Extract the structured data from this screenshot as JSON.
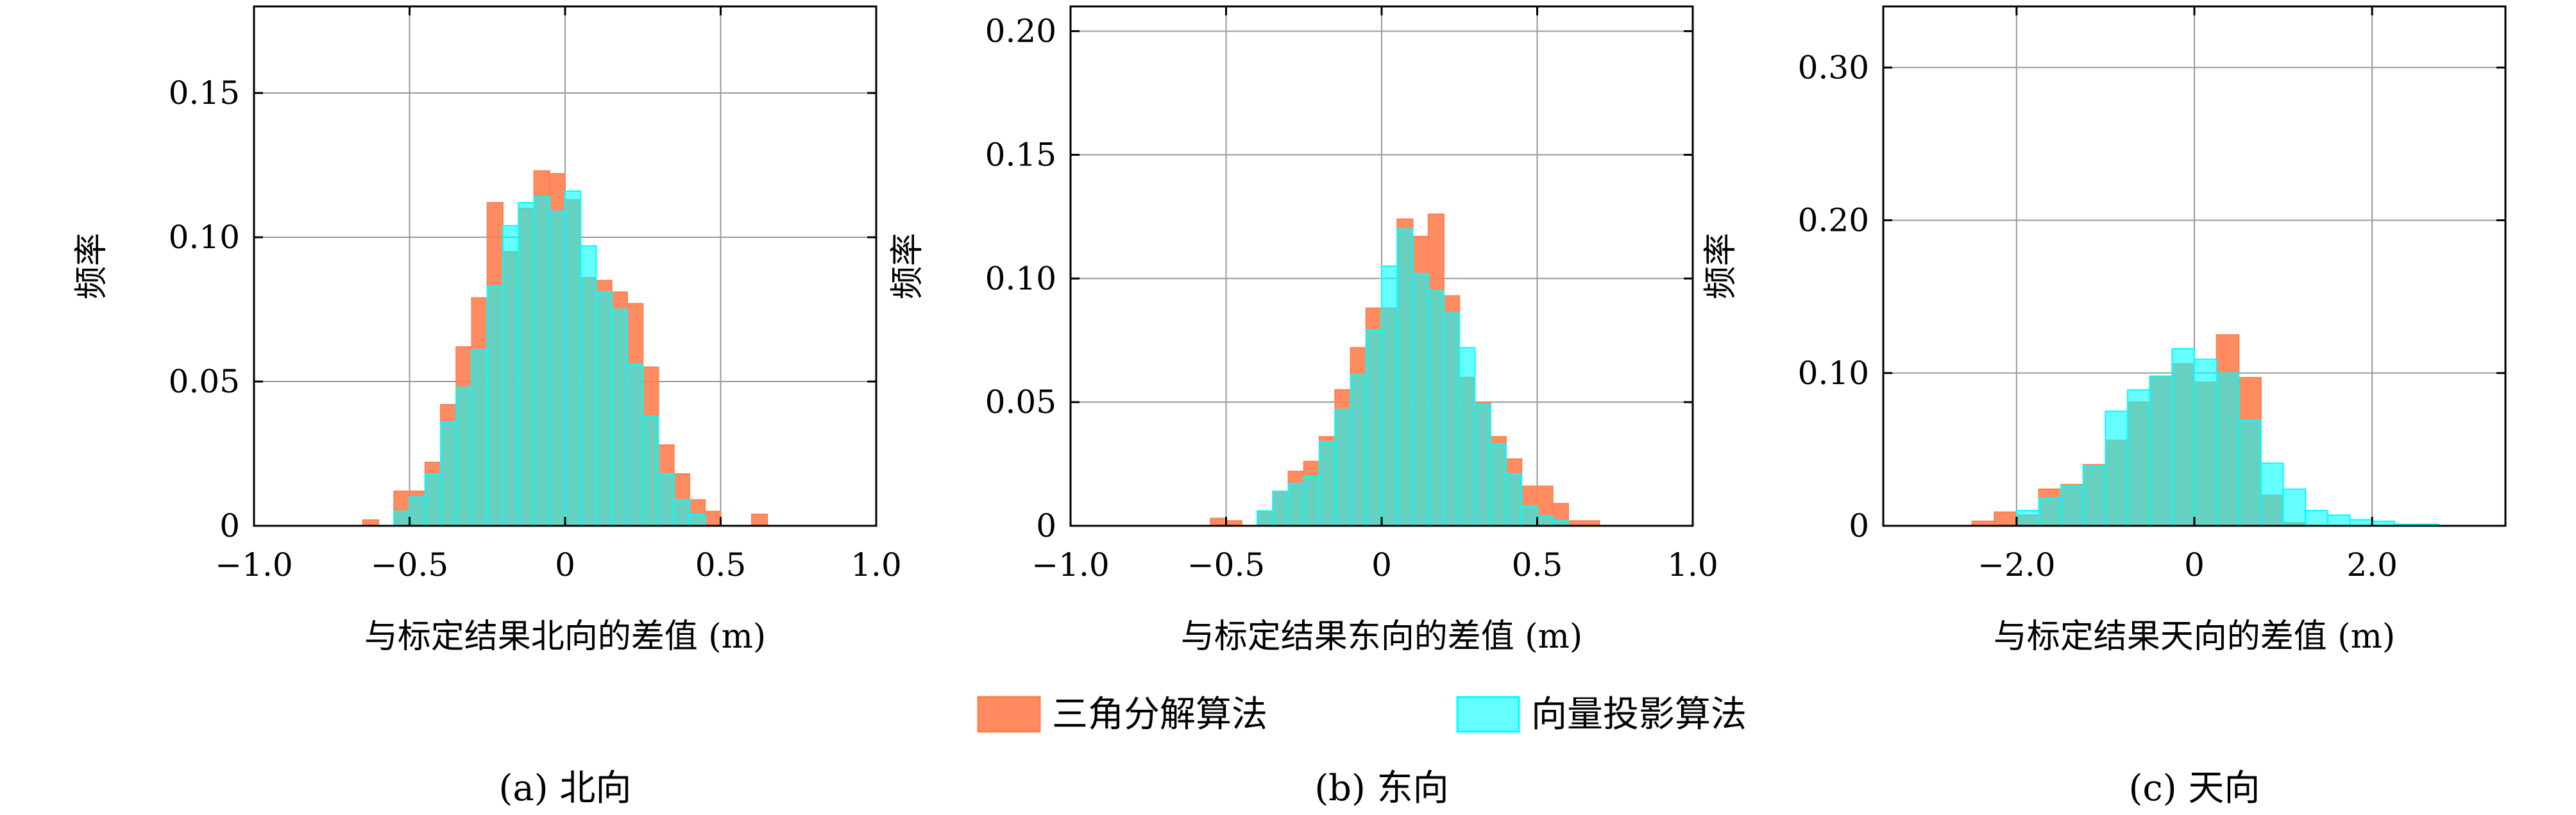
{
  "legend": {
    "items": [
      {
        "label": "三角分解算法",
        "color": "#ff7f50",
        "fill_opacity": 0.9,
        "icon": "orange-swatch"
      },
      {
        "label": "向量投影算法",
        "color": "#00ffff",
        "fill_opacity": 0.6,
        "icon": "cyan-swatch"
      }
    ]
  },
  "chart_data": [
    {
      "type": "bar",
      "subtype": "histogram-overlay",
      "caption": "(a) 北向",
      "xlabel": "与标定结果北向的差值 (m)",
      "ylabel": "频率",
      "xlim": [
        -1.0,
        1.0
      ],
      "ylim": [
        0,
        0.18
      ],
      "xticks": [
        -1.0,
        -0.5,
        0,
        0.5,
        1.0
      ],
      "xtick_labels": [
        "−1.0",
        "−0.5",
        "0",
        "0.5",
        "1.0"
      ],
      "yticks": [
        0,
        0.05,
        0.1,
        0.15
      ],
      "ytick_labels": [
        "0",
        "0.05",
        "0.10",
        "0.15"
      ],
      "grid": true,
      "bin_width": 0.05,
      "series": [
        {
          "name": "三角分解算法",
          "bin_starts": [
            -0.65,
            -0.55,
            -0.5,
            -0.45,
            -0.4,
            -0.35,
            -0.3,
            -0.25,
            -0.2,
            -0.15,
            -0.1,
            -0.05,
            0.0,
            0.05,
            0.1,
            0.15,
            0.2,
            0.25,
            0.3,
            0.35,
            0.4,
            0.45,
            0.6
          ],
          "values": [
            0.002,
            0.012,
            0.012,
            0.022,
            0.042,
            0.062,
            0.079,
            0.112,
            0.095,
            0.11,
            0.123,
            0.122,
            0.113,
            0.086,
            0.085,
            0.081,
            0.077,
            0.055,
            0.028,
            0.018,
            0.009,
            0.005,
            0.004
          ]
        },
        {
          "name": "向量投影算法",
          "bin_starts": [
            -0.55,
            -0.5,
            -0.45,
            -0.4,
            -0.35,
            -0.3,
            -0.25,
            -0.2,
            -0.15,
            -0.1,
            -0.05,
            0.0,
            0.05,
            0.1,
            0.15,
            0.2,
            0.25,
            0.3,
            0.35,
            0.4
          ],
          "values": [
            0.005,
            0.01,
            0.018,
            0.036,
            0.048,
            0.061,
            0.083,
            0.104,
            0.112,
            0.114,
            0.109,
            0.116,
            0.097,
            0.081,
            0.075,
            0.056,
            0.038,
            0.018,
            0.009,
            0.004
          ]
        }
      ]
    },
    {
      "type": "bar",
      "subtype": "histogram-overlay",
      "caption": "(b) 东向",
      "xlabel": "与标定结果东向的差值 (m)",
      "ylabel": "频率",
      "xlim": [
        -1.0,
        1.0
      ],
      "ylim": [
        0,
        0.21
      ],
      "xticks": [
        -1.0,
        -0.5,
        0,
        0.5,
        1.0
      ],
      "xtick_labels": [
        "−1.0",
        "−0.5",
        "0",
        "0.5",
        "1.0"
      ],
      "yticks": [
        0,
        0.05,
        0.1,
        0.15,
        0.2
      ],
      "ytick_labels": [
        "0",
        "0.05",
        "0.10",
        "0.15",
        "0.20"
      ],
      "grid": true,
      "bin_width": 0.05,
      "series": [
        {
          "name": "三角分解算法",
          "bin_starts": [
            -0.55,
            -0.5,
            -0.4,
            -0.35,
            -0.3,
            -0.25,
            -0.2,
            -0.15,
            -0.1,
            -0.05,
            0.0,
            0.05,
            0.1,
            0.15,
            0.2,
            0.25,
            0.3,
            0.35,
            0.4,
            0.45,
            0.5,
            0.55,
            0.6,
            0.65
          ],
          "values": [
            0.003,
            0.002,
            0.006,
            0.014,
            0.022,
            0.026,
            0.036,
            0.055,
            0.072,
            0.088,
            0.088,
            0.124,
            0.117,
            0.126,
            0.093,
            0.06,
            0.05,
            0.036,
            0.027,
            0.016,
            0.016,
            0.009,
            0.002,
            0.002
          ]
        },
        {
          "name": "向量投影算法",
          "bin_starts": [
            -0.4,
            -0.35,
            -0.3,
            -0.25,
            -0.2,
            -0.15,
            -0.1,
            -0.05,
            0.0,
            0.05,
            0.1,
            0.15,
            0.2,
            0.25,
            0.3,
            0.35,
            0.4,
            0.45,
            0.5,
            0.55
          ],
          "values": [
            0.006,
            0.014,
            0.017,
            0.02,
            0.034,
            0.047,
            0.061,
            0.079,
            0.105,
            0.12,
            0.102,
            0.095,
            0.086,
            0.072,
            0.049,
            0.033,
            0.021,
            0.008,
            0.004,
            0.002
          ]
        }
      ]
    },
    {
      "type": "bar",
      "subtype": "histogram-overlay",
      "caption": "(c) 天向",
      "xlabel": "与标定结果天向的差值 (m)",
      "ylabel": "频率",
      "xlim": [
        -3.5,
        3.5
      ],
      "ylim": [
        0,
        0.34
      ],
      "xticks": [
        -2.0,
        0,
        2.0
      ],
      "xtick_labels": [
        "−2.0",
        "0",
        "2.0"
      ],
      "yticks": [
        0,
        0.1,
        0.2,
        0.3
      ],
      "ytick_labels": [
        "0",
        "0.10",
        "0.20",
        "0.30"
      ],
      "grid": true,
      "bin_width": 0.25,
      "series": [
        {
          "name": "三角分解算法",
          "bin_starts": [
            -2.5,
            -2.25,
            -2.0,
            -1.75,
            -1.5,
            -1.25,
            -1.0,
            -0.75,
            -0.5,
            -0.25,
            0.0,
            0.25,
            0.5,
            0.75,
            1.0
          ],
          "values": [
            0.003,
            0.009,
            0.007,
            0.024,
            0.027,
            0.04,
            0.056,
            0.081,
            0.098,
            0.106,
            0.094,
            0.125,
            0.097,
            0.02,
            0.002
          ]
        },
        {
          "name": "向量投影算法",
          "bin_starts": [
            -2.0,
            -1.75,
            -1.5,
            -1.25,
            -1.0,
            -0.75,
            -0.5,
            -0.25,
            0.0,
            0.25,
            0.5,
            0.75,
            1.0,
            1.25,
            1.5,
            1.75,
            2.0,
            2.25,
            2.5
          ],
          "values": [
            0.01,
            0.018,
            0.026,
            0.039,
            0.075,
            0.089,
            0.098,
            0.116,
            0.109,
            0.1,
            0.069,
            0.041,
            0.024,
            0.01,
            0.007,
            0.004,
            0.003,
            0.001,
            0.001
          ]
        }
      ]
    }
  ]
}
